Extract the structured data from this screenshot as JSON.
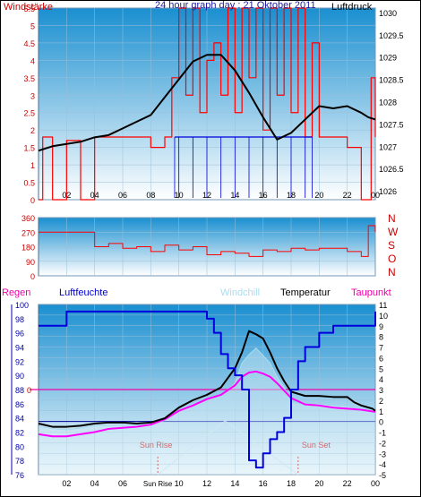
{
  "title": "24 hour graph day : 21 Oktober 2011",
  "colors": {
    "wind": "#ff0000",
    "pressure": "#000000",
    "humidity": "#0000dd",
    "windchill": "#aaddee",
    "temperature": "#000000",
    "dewpoint": "#ff00ff",
    "panel_top": "#1a8fd0",
    "panel_bottom": "#ffffff"
  },
  "x_ticks": [
    "02",
    "04",
    "06",
    "08",
    "10",
    "12",
    "14",
    "16",
    "18",
    "20",
    "22",
    "00"
  ],
  "chart_data": [
    {
      "type": "line",
      "title": "24 hour graph day : 21 Oktober 2011",
      "left_axis": {
        "label": "Windstärke",
        "ticks": [
          "0",
          "0.5",
          "1",
          "1.5",
          "2",
          "2.5",
          "3",
          "3.5",
          "4",
          "4.5",
          "5",
          "5.5"
        ],
        "ylim": [
          0,
          5.5
        ]
      },
      "right_axis": {
        "label": "Luftdruck",
        "ticks": [
          "1026",
          "1026.5",
          "1027",
          "1027.5",
          "1028",
          "1028.5",
          "1029",
          "1029.5",
          "1030"
        ],
        "ylim": [
          1025.8,
          1030.1
        ]
      },
      "x_range": [
        0,
        24
      ],
      "series": [
        {
          "name": "Luftdruck",
          "axis": "right",
          "x": [
            0,
            1,
            2,
            3,
            4,
            5,
            6,
            7,
            8,
            9,
            10,
            11,
            12,
            13,
            14,
            15,
            16,
            17,
            18,
            19,
            20,
            21,
            22,
            23,
            23.5,
            24
          ],
          "values": [
            1026.9,
            1027,
            1027.05,
            1027.1,
            1027.2,
            1027.25,
            1027.4,
            1027.55,
            1027.7,
            1028.1,
            1028.5,
            1028.9,
            1029.05,
            1029.05,
            1028.7,
            1028.2,
            1027.65,
            1027.15,
            1027.3,
            1027.6,
            1027.9,
            1027.85,
            1027.9,
            1027.75,
            1027.65,
            1027.6
          ]
        },
        {
          "name": "Windstärke",
          "axis": "left",
          "x": [
            0,
            0.3,
            1,
            2,
            3,
            4,
            5,
            6,
            7,
            8,
            9,
            9.5,
            10,
            10.5,
            11,
            11.5,
            12,
            12.5,
            13,
            13.5,
            14,
            14.5,
            15,
            15.5,
            16,
            16.5,
            17,
            17.5,
            18,
            18.5,
            19,
            19.5,
            20,
            21,
            22,
            23,
            23.7,
            24
          ],
          "values": [
            0,
            1.8,
            0,
            1.7,
            0,
            1.8,
            1.8,
            1.8,
            1.8,
            1.5,
            1.8,
            3.5,
            5.5,
            3,
            5.5,
            2.5,
            4,
            4.5,
            3,
            5.5,
            2.5,
            5.5,
            3.5,
            5.5,
            2,
            5.5,
            3,
            5.5,
            2.5,
            5.5,
            1.8,
            4.5,
            1.8,
            1.8,
            1.5,
            0,
            3.5,
            1.8
          ]
        },
        {
          "name": "Blue segments",
          "axis": "left",
          "x": [
            9.7,
            10,
            11,
            12,
            13,
            14,
            15,
            16,
            17,
            18,
            19,
            19.5
          ],
          "values": [
            1.8,
            1.8,
            1.8,
            1.8,
            1.8,
            1.8,
            1.8,
            1.8,
            1.8,
            1.8,
            1.8,
            1.8
          ]
        }
      ]
    },
    {
      "type": "line",
      "left_axis": {
        "ticks": [
          "0",
          "90",
          "180",
          "270",
          "360"
        ],
        "ylim": [
          0,
          360
        ]
      },
      "right_labels": [
        "N",
        "W",
        "S",
        "O",
        "N"
      ],
      "x_range": [
        0,
        24
      ],
      "series": [
        {
          "name": "Wind direction",
          "x": [
            0,
            1,
            2,
            3,
            3.5,
            4,
            5,
            6,
            7,
            8,
            9,
            10,
            11,
            12,
            13,
            14,
            15,
            16,
            17,
            18,
            19,
            20,
            21,
            22,
            23,
            23.5,
            24
          ],
          "values": [
            270,
            270,
            270,
            270,
            270,
            180,
            200,
            170,
            180,
            150,
            190,
            160,
            180,
            130,
            150,
            140,
            120,
            160,
            150,
            170,
            160,
            170,
            170,
            150,
            120,
            310,
            270
          ]
        }
      ]
    },
    {
      "type": "line",
      "left_axis": {
        "label": "Regen",
        "ticks": [
          "76",
          "78",
          "80",
          "82",
          "84",
          "86",
          "88",
          "90",
          "92",
          "94",
          "96",
          "98",
          "100"
        ],
        "ylim": [
          76,
          100
        ]
      },
      "right_axis": {
        "ticks": [
          "-5",
          "-4",
          "-3",
          "-2",
          "-1",
          "0",
          "1",
          "2",
          "3",
          "4",
          "5",
          "6",
          "7",
          "8",
          "9",
          "10",
          "11"
        ],
        "ylim": [
          -5,
          11
        ]
      },
      "legend": [
        "Regen",
        "Luftfeuchte",
        "Windchill",
        "Temperatur",
        "Taupunkt"
      ],
      "annotations": [
        {
          "text": "Sun Rise",
          "x": 8.5
        },
        {
          "text": "Sun Set",
          "x": 18.5
        }
      ],
      "markers": {
        "rain_zero": "0"
      },
      "x_range": [
        0,
        24
      ],
      "series": [
        {
          "name": "Luftfeuchte",
          "axis": "left",
          "x": [
            0,
            0.5,
            1,
            2,
            3,
            4,
            5,
            6,
            7,
            8,
            9,
            10,
            11,
            11.5,
            12,
            12.5,
            13,
            13.5,
            14,
            14.5,
            15,
            15.5,
            16,
            16.5,
            17,
            17.5,
            18,
            18.5,
            19,
            20,
            21,
            22,
            23,
            23.8,
            24
          ],
          "values": [
            97,
            97,
            97,
            99,
            99,
            99,
            99,
            99,
            99,
            99,
            99,
            99,
            99,
            99,
            98,
            96,
            93,
            91,
            90,
            88,
            78,
            77,
            79,
            81,
            82,
            84,
            88,
            92,
            94,
            96,
            97,
            97,
            97,
            97,
            99
          ]
        },
        {
          "name": "Temperatur",
          "axis": "right",
          "x": [
            0,
            1,
            2,
            3,
            4,
            5,
            6,
            7,
            8,
            9,
            10,
            11,
            12,
            13,
            14,
            14.5,
            15,
            15.5,
            16,
            16.5,
            17,
            17.5,
            18,
            19,
            20,
            21,
            22,
            22.5,
            23,
            23.8,
            24
          ],
          "values": [
            -0.2,
            -0.5,
            -0.5,
            -0.4,
            -0.2,
            -0.1,
            -0.1,
            -0.2,
            -0.1,
            0.3,
            1.3,
            2,
            2.5,
            3.2,
            5,
            6.5,
            8.5,
            8.2,
            7.8,
            6.5,
            5,
            3.8,
            2.8,
            2.4,
            2.4,
            2.3,
            2.3,
            1.8,
            1.5,
            1.2,
            1
          ]
        },
        {
          "name": "Windchill",
          "axis": "right",
          "x": [
            0,
            2,
            4,
            6,
            8,
            9,
            10,
            11,
            12,
            13,
            14,
            14.5,
            15,
            15.5,
            16,
            16.5,
            17,
            17.5,
            18,
            19,
            20,
            21,
            22,
            22.5,
            23,
            24
          ],
          "values": [
            -0.5,
            -0.8,
            -0.4,
            -0.4,
            -0.3,
            0.1,
            1.1,
            1.6,
            2,
            2.4,
            3.6,
            5.5,
            6.3,
            6.9,
            6.2,
            5.5,
            4.2,
            3.2,
            1.8,
            1.5,
            1.6,
            1.5,
            1.4,
            1.2,
            1.2,
            0.8
          ]
        },
        {
          "name": "Taupunkt",
          "axis": "right",
          "x": [
            0,
            1,
            2,
            3,
            4,
            5,
            6,
            7,
            8,
            9,
            10,
            11,
            12,
            13,
            14,
            14.5,
            15,
            15.5,
            16,
            16.5,
            17,
            17.5,
            18,
            19,
            20,
            21,
            22,
            23,
            24
          ],
          "values": [
            -1.2,
            -1.4,
            -1.4,
            -1.2,
            -1,
            -0.7,
            -0.6,
            -0.5,
            -0.3,
            0.2,
            1,
            1.5,
            2.1,
            2.5,
            3.4,
            4.2,
            4.6,
            4.7,
            4.5,
            4.2,
            3.6,
            2.9,
            2.2,
            1.6,
            1.5,
            1.3,
            1.2,
            1.1,
            0.9
          ]
        }
      ]
    }
  ],
  "labels": {
    "windstaerke": "Windstärke",
    "luftdruck": "Luftdruck",
    "regen": "Regen",
    "luftfeuchte": "Luftfeuchte",
    "windchill": "Windchill",
    "temperatur": "Temperatur",
    "taupunkt": "Taupunkt",
    "sun_rise": "Sun Rise",
    "sun_set": "Sun Set",
    "sun_rise_tick": "Sun Rise",
    "rain_zero": "0"
  }
}
